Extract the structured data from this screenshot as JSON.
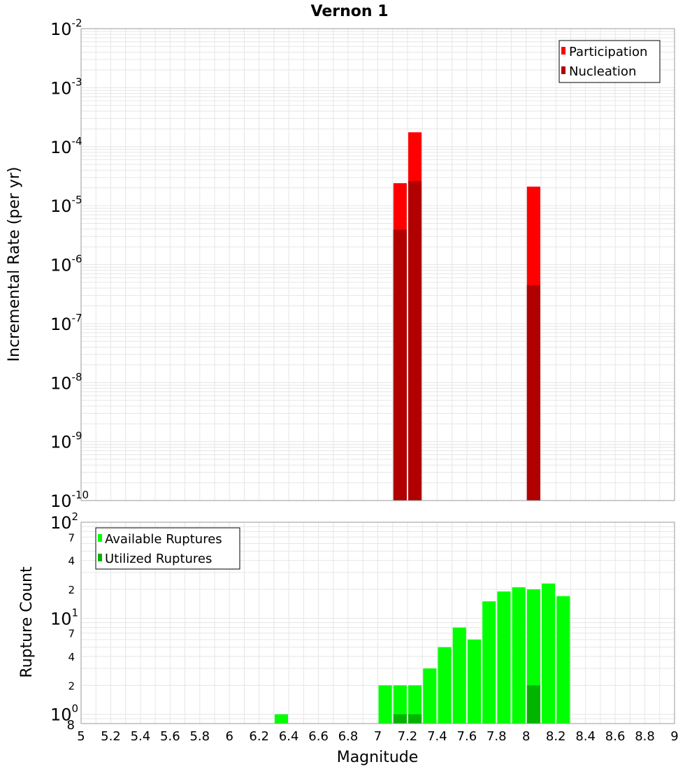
{
  "title": "Vernon 1",
  "xlabel": "Magnitude",
  "chart_data": [
    {
      "type": "bar",
      "ylabel": "Incremental Rate (per yr)",
      "yscale": "log",
      "ylim": [
        1e-10,
        0.01
      ],
      "xlim": [
        5,
        9
      ],
      "xticks": [
        "5",
        "5.2",
        "5.4",
        "5.6",
        "5.8",
        "6",
        "6.2",
        "6.4",
        "6.6",
        "6.8",
        "7",
        "7.2",
        "7.4",
        "7.6",
        "7.8",
        "8",
        "8.2",
        "8.4",
        "8.6",
        "8.8",
        "9"
      ],
      "ytick_labels": [
        {
          "base": "10",
          "exp": "-2"
        },
        {
          "base": "10",
          "exp": "-3"
        },
        {
          "base": "10",
          "exp": "-4"
        },
        {
          "base": "10",
          "exp": "-5"
        },
        {
          "base": "10",
          "exp": "-6"
        },
        {
          "base": "10",
          "exp": "-7"
        },
        {
          "base": "10",
          "exp": "-8"
        },
        {
          "base": "10",
          "exp": "-9"
        },
        {
          "base": "10",
          "exp": "-10"
        }
      ],
      "legend_position": "top-right",
      "series": [
        {
          "name": "Participation",
          "color": "#ff0000",
          "points": [
            {
              "x": 7.15,
              "y": 2.4e-05
            },
            {
              "x": 7.25,
              "y": 0.000175
            },
            {
              "x": 8.05,
              "y": 2.1e-05
            }
          ]
        },
        {
          "name": "Nucleation",
          "color": "#b00000",
          "points": [
            {
              "x": 7.15,
              "y": 3.9e-06
            },
            {
              "x": 7.25,
              "y": 2.6e-05
            },
            {
              "x": 8.05,
              "y": 4.5e-07
            }
          ]
        }
      ]
    },
    {
      "type": "bar",
      "ylabel": "Rupture Count",
      "yscale": "log",
      "ylim": [
        0.8,
        100
      ],
      "xlim": [
        5,
        9
      ],
      "ytick_labels": [
        {
          "base": "10",
          "exp": "2"
        },
        {
          "base": "10",
          "exp": "1"
        },
        {
          "base": "10",
          "exp": "0"
        }
      ],
      "minor_tick_labels": [
        "7",
        "4",
        "2",
        "7",
        "4",
        "2",
        "8"
      ],
      "legend_position": "top-left",
      "series": [
        {
          "name": "Available Ruptures",
          "color": "#00ff00",
          "points": [
            {
              "x": 6.35,
              "y": 1
            },
            {
              "x": 7.05,
              "y": 2
            },
            {
              "x": 7.15,
              "y": 2
            },
            {
              "x": 7.25,
              "y": 2
            },
            {
              "x": 7.35,
              "y": 3
            },
            {
              "x": 7.45,
              "y": 5
            },
            {
              "x": 7.55,
              "y": 8
            },
            {
              "x": 7.65,
              "y": 6
            },
            {
              "x": 7.75,
              "y": 15
            },
            {
              "x": 7.85,
              "y": 19
            },
            {
              "x": 7.95,
              "y": 21
            },
            {
              "x": 8.05,
              "y": 20
            },
            {
              "x": 8.15,
              "y": 23
            },
            {
              "x": 8.25,
              "y": 17
            }
          ]
        },
        {
          "name": "Utilized Ruptures",
          "color": "#00b400",
          "points": [
            {
              "x": 7.15,
              "y": 1
            },
            {
              "x": 7.25,
              "y": 1
            },
            {
              "x": 8.05,
              "y": 2
            }
          ]
        }
      ]
    }
  ]
}
